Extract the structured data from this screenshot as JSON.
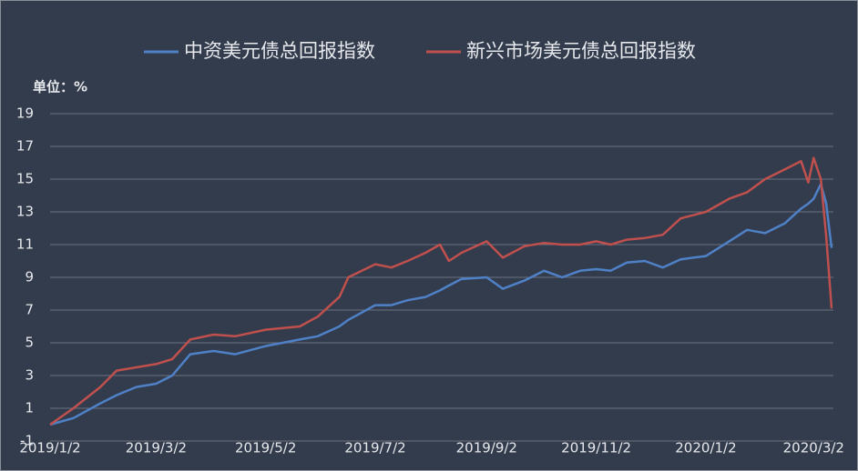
{
  "chart_data": {
    "type": "line",
    "legend": "top",
    "unit_label": "单位：%",
    "grid": true,
    "x": [
      "2019/1/2",
      "2019/1/15",
      "2019/1/30",
      "2019/2/8",
      "2019/2/19",
      "2019/3/2",
      "2019/3/11",
      "2019/3/21",
      "2019/4/3",
      "2019/4/15",
      "2019/5/2",
      "2019/5/21",
      "2019/5/31",
      "2019/6/12",
      "2019/6/17",
      "2019/7/2",
      "2019/7/11",
      "2019/7/20",
      "2019/7/30",
      "2019/8/7",
      "2019/8/12",
      "2019/8/19",
      "2019/9/2",
      "2019/9/11",
      "2019/9/23",
      "2019/10/4",
      "2019/10/14",
      "2019/10/24",
      "2019/11/2",
      "2019/11/10",
      "2019/11/19",
      "2019/11/29",
      "2019/12/9",
      "2019/12/19",
      "2020/1/2",
      "2020/1/15",
      "2020/1/25",
      "2020/2/4",
      "2020/2/15",
      "2020/2/24",
      "2020/2/28",
      "2020/3/2",
      "2020/3/6",
      "2020/3/9",
      "2020/3/12"
    ],
    "xlim": [
      "2019/1/2",
      "2020/3/13"
    ],
    "xticks": [
      "2019/1/2",
      "2019/3/2",
      "2019/5/2",
      "2019/7/2",
      "2019/9/2",
      "2019/11/2",
      "2020/1/2",
      "2020/3/2"
    ],
    "ylim": [
      -1,
      19
    ],
    "yticks": [
      -1,
      1,
      3,
      5,
      7,
      9,
      11,
      13,
      15,
      17,
      19
    ],
    "series": [
      {
        "name": "中资美元债总回报指数",
        "color": "#4f81c7",
        "values": [
          0,
          0.4,
          1.3,
          1.8,
          2.3,
          2.5,
          3.0,
          4.3,
          4.5,
          4.3,
          4.8,
          5.2,
          5.4,
          6.0,
          6.4,
          7.3,
          7.3,
          7.6,
          7.8,
          8.2,
          8.5,
          8.9,
          9.0,
          8.3,
          8.8,
          9.4,
          9.0,
          9.4,
          9.5,
          9.4,
          9.9,
          10.0,
          9.6,
          10.1,
          10.3,
          11.2,
          11.9,
          11.7,
          12.3,
          13.2,
          13.5,
          13.8,
          14.7,
          13.5,
          10.8
        ]
      },
      {
        "name": "新兴市场美元债总回报指数",
        "color": "#c0504d",
        "values": [
          0,
          1.0,
          2.3,
          3.3,
          3.5,
          3.7,
          4.0,
          5.2,
          5.5,
          5.4,
          5.8,
          6.0,
          6.6,
          7.8,
          9.0,
          9.8,
          9.6,
          10.0,
          10.5,
          11.0,
          10.0,
          10.5,
          11.2,
          10.2,
          10.9,
          11.1,
          11.0,
          11.0,
          11.2,
          11.0,
          11.3,
          11.4,
          11.6,
          12.6,
          13.0,
          13.8,
          14.2,
          15.0,
          15.6,
          16.1,
          14.8,
          16.3,
          15.0,
          11.5,
          7.1
        ]
      }
    ]
  }
}
